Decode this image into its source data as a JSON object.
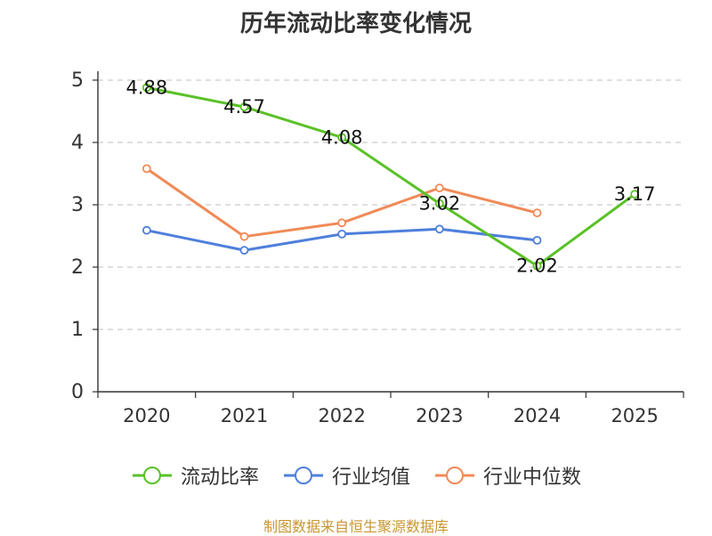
{
  "title": "历年流动比率变化情况",
  "source": "制图数据来自恒生聚源数据库",
  "chart_data": {
    "type": "line",
    "title": "历年流动比率变化情况",
    "xlabel": "",
    "ylabel": "",
    "categories": [
      "2020",
      "2021",
      "2022",
      "2023",
      "2024",
      "2025"
    ],
    "ylim": [
      0,
      5
    ],
    "yticks": [
      "0",
      "1",
      "2",
      "3",
      "4",
      "5"
    ],
    "grid": true,
    "legend_position": "bottom",
    "series": [
      {
        "name": "流动比率",
        "color": "#5ac127",
        "values": [
          4.88,
          4.57,
          4.08,
          3.02,
          2.02,
          3.17
        ],
        "labels": [
          "4.88",
          "4.57",
          "4.08",
          "3.02",
          "2.02",
          "3.17"
        ]
      },
      {
        "name": "行业均值",
        "color": "#4e7fdc",
        "values": [
          2.59,
          2.27,
          2.53,
          2.61,
          2.43,
          null
        ]
      },
      {
        "name": "行业中位数",
        "color": "#f08a57",
        "values": [
          3.58,
          2.49,
          2.71,
          3.27,
          2.87,
          null
        ]
      }
    ]
  }
}
